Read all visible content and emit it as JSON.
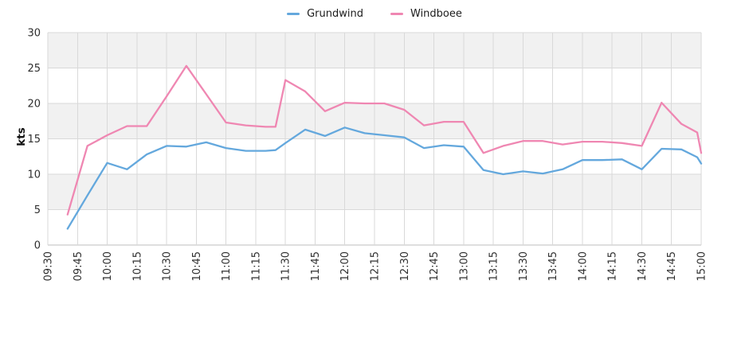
{
  "legend": {
    "items": [
      {
        "label": "Grundwind",
        "color": "#64a8dd"
      },
      {
        "label": "Windboee",
        "color": "#ef87b2"
      }
    ]
  },
  "chart_data": {
    "type": "line",
    "title": "",
    "xlabel": "",
    "ylabel": "kts",
    "ylim": [
      0,
      30
    ],
    "yticks": [
      0,
      5,
      10,
      15,
      20,
      25,
      30
    ],
    "xtick_labels": [
      "09:30",
      "09:45",
      "10:00",
      "10:15",
      "10:30",
      "10:45",
      "11:00",
      "11:15",
      "11:30",
      "11:45",
      "12:00",
      "12:15",
      "12:30",
      "12:45",
      "13:00",
      "13:15",
      "13:30",
      "13:45",
      "14:00",
      "14:15",
      "14:30",
      "14:45",
      "15:00"
    ],
    "x_range": [
      "09:30",
      "15:00"
    ],
    "grid": true,
    "legend_position": "top-center",
    "bands": [
      [
        5,
        10
      ],
      [
        15,
        20
      ],
      [
        25,
        30
      ]
    ],
    "band_color": "#f1f1f1",
    "grid_color": "#d9d9d9",
    "axis_color": "#bdbdbd",
    "tick_text_color": "#2e2e2e",
    "x": [
      "09:40",
      "09:50",
      "10:00",
      "10:10",
      "10:20",
      "10:30",
      "10:40",
      "10:50",
      "11:00",
      "11:10",
      "11:20",
      "11:25",
      "11:30",
      "11:40",
      "11:50",
      "12:00",
      "12:10",
      "12:20",
      "12:30",
      "12:40",
      "12:50",
      "13:00",
      "13:10",
      "13:20",
      "13:30",
      "13:40",
      "13:50",
      "14:00",
      "14:10",
      "14:20",
      "14:30",
      "14:40",
      "14:50",
      "14:58",
      "15:00"
    ],
    "series": [
      {
        "name": "Grundwind",
        "color": "#64a8dd",
        "values": [
          2.3,
          7.0,
          11.6,
          10.7,
          12.8,
          14.0,
          13.9,
          14.5,
          13.7,
          13.3,
          13.3,
          13.4,
          14.4,
          16.3,
          15.4,
          16.6,
          15.8,
          15.5,
          15.2,
          13.7,
          14.1,
          13.9,
          10.6,
          10.0,
          10.4,
          10.1,
          10.7,
          12.0,
          12.0,
          12.1,
          10.7,
          13.6,
          13.5,
          12.4,
          11.5
        ]
      },
      {
        "name": "Windboee",
        "color": "#ef87b2",
        "values": [
          4.3,
          14.0,
          15.5,
          16.8,
          16.8,
          21.0,
          25.3,
          21.3,
          17.3,
          16.9,
          16.7,
          16.7,
          23.3,
          21.7,
          18.9,
          20.1,
          20.0,
          20.0,
          19.1,
          16.9,
          17.4,
          17.4,
          13.0,
          14.0,
          14.7,
          14.7,
          14.2,
          14.6,
          14.6,
          14.4,
          14.0,
          20.1,
          17.1,
          15.9,
          13.0
        ]
      }
    ]
  }
}
